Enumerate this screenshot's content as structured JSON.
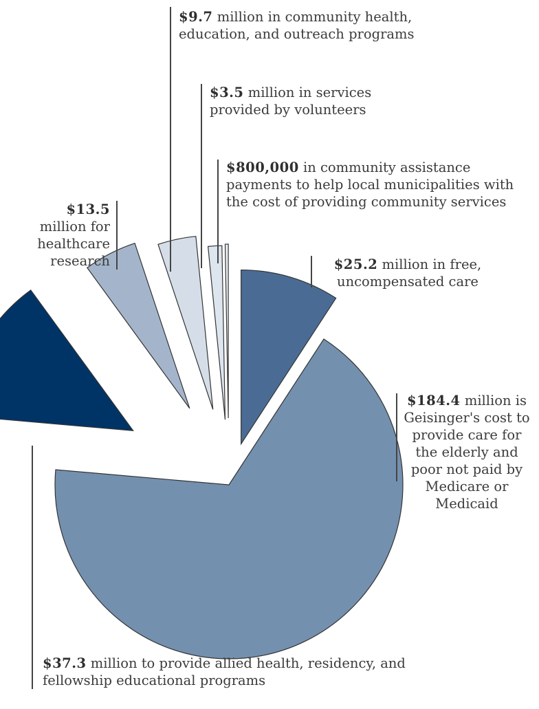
{
  "chart_data": {
    "type": "pie",
    "unit": "$ million",
    "slices": [
      {
        "value": 25.2,
        "color": "#4a6c94",
        "amount": "$25.2",
        "text": " million in free, uncompensated care"
      },
      {
        "value": 184.4,
        "color": "#7490af",
        "amount": "$184.4",
        "text": " million is Geisinger's cost to provide care for the elderly and poor not paid by Medicare or Medicaid"
      },
      {
        "value": 37.3,
        "color": "#003366",
        "amount": "$37.3",
        "text": " million to provide allied health, residency, and fellowship educational programs"
      },
      {
        "value": 13.5,
        "color": "#a4b5cb",
        "amount": "$13.5",
        "text": " million for healthcare research"
      },
      {
        "value": 9.7,
        "color": "#d5dee8",
        "amount": "$9.7",
        "text": " million in community health, education, and outreach programs"
      },
      {
        "value": 3.5,
        "color": "#dde5ee",
        "amount": "$3.5",
        "text": " million in services provided by volunteers"
      },
      {
        "value": 0.8,
        "color": "#e8eef4",
        "amount": "$800,000",
        "text": " in community assistance payments to help local municipalities with the cost of providing community services"
      }
    ]
  }
}
